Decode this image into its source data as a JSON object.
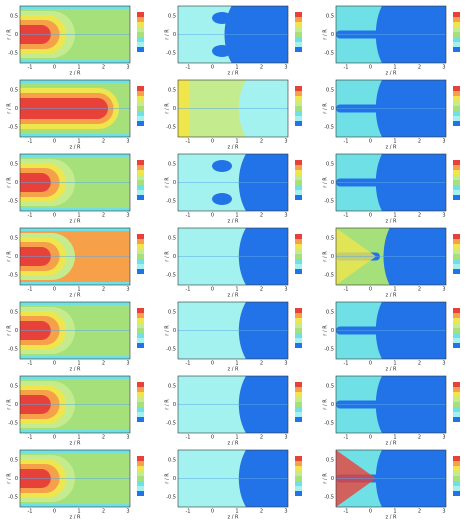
{
  "figure": {
    "x_label": "z / R",
    "y_label": "r / R",
    "x_ticks": [
      "-1",
      "0",
      "1",
      "2",
      "3"
    ],
    "y_ticks": [
      "0.5",
      "0",
      "-0.5"
    ]
  }
}
